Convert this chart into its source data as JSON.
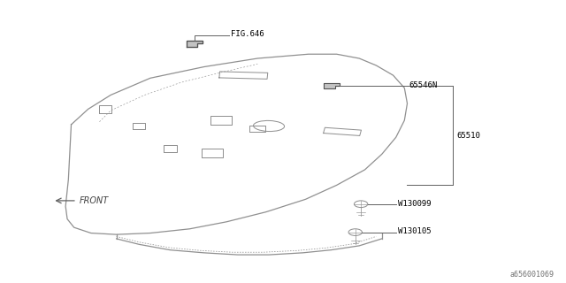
{
  "background_color": "#ffffff",
  "line_color": "#909090",
  "text_color": "#000000",
  "watermark": "a656001069",
  "labels": {
    "FIG646": "FIG.646",
    "65546N": "65546N",
    "65510": "65510",
    "W130099": "W130099",
    "W130105": "W130105",
    "FRONT": "FRONT"
  },
  "shelf_ox": [
    0.125,
    0.155,
    0.195,
    0.265,
    0.36,
    0.455,
    0.545,
    0.595,
    0.635,
    0.665,
    0.695,
    0.715,
    0.72,
    0.715,
    0.7,
    0.675,
    0.645,
    0.595,
    0.54,
    0.47,
    0.4,
    0.335,
    0.265,
    0.205,
    0.16,
    0.13,
    0.118,
    0.115,
    0.12,
    0.125
  ],
  "shelf_oy": [
    0.56,
    0.615,
    0.665,
    0.725,
    0.765,
    0.795,
    0.81,
    0.81,
    0.795,
    0.77,
    0.735,
    0.69,
    0.635,
    0.575,
    0.515,
    0.455,
    0.4,
    0.345,
    0.295,
    0.25,
    0.215,
    0.19,
    0.175,
    0.17,
    0.175,
    0.195,
    0.225,
    0.27,
    0.365,
    0.56
  ]
}
